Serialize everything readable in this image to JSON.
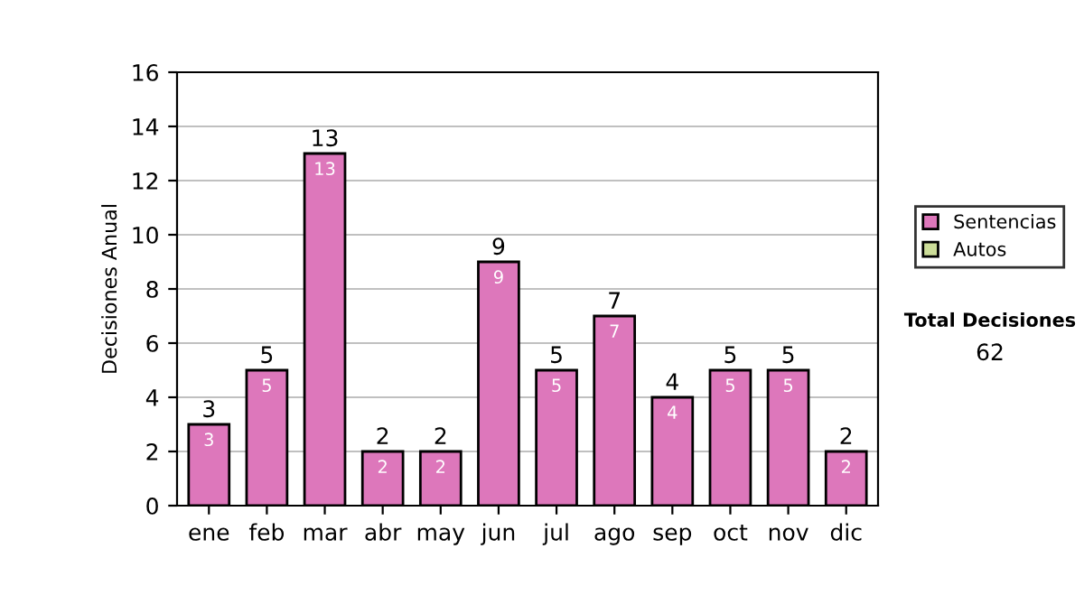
{
  "chart_data": {
    "type": "bar",
    "stacked": true,
    "ylabel": "Decisiones Anual",
    "categories": [
      "ene",
      "feb",
      "mar",
      "abr",
      "may",
      "jun",
      "jul",
      "ago",
      "sep",
      "oct",
      "nov",
      "dic"
    ],
    "series": [
      {
        "name": "Sentencias",
        "color": "#dd77bb",
        "values": [
          3,
          5,
          13,
          2,
          2,
          9,
          5,
          7,
          4,
          5,
          5,
          2
        ],
        "value_labels": [
          "3",
          "5",
          "13",
          "2",
          "2",
          "9",
          "5",
          "7",
          "4",
          "5",
          "5",
          "2"
        ]
      },
      {
        "name": "Autos",
        "color": "#ccdd99",
        "values": [
          null,
          null,
          null,
          null,
          null,
          null,
          null,
          null,
          null,
          null,
          null,
          null
        ]
      }
    ],
    "totals": [
      "3",
      "5",
      "13",
      "2",
      "2",
      "9",
      "5",
      "7",
      "4",
      "5",
      "5",
      "2"
    ],
    "ylim": [
      0,
      16
    ],
    "yticks": [
      0,
      2,
      4,
      6,
      8,
      10,
      12,
      14,
      16
    ],
    "grid": "y",
    "legend": "right",
    "annotations": [
      "Total Decisiones",
      "62"
    ]
  }
}
